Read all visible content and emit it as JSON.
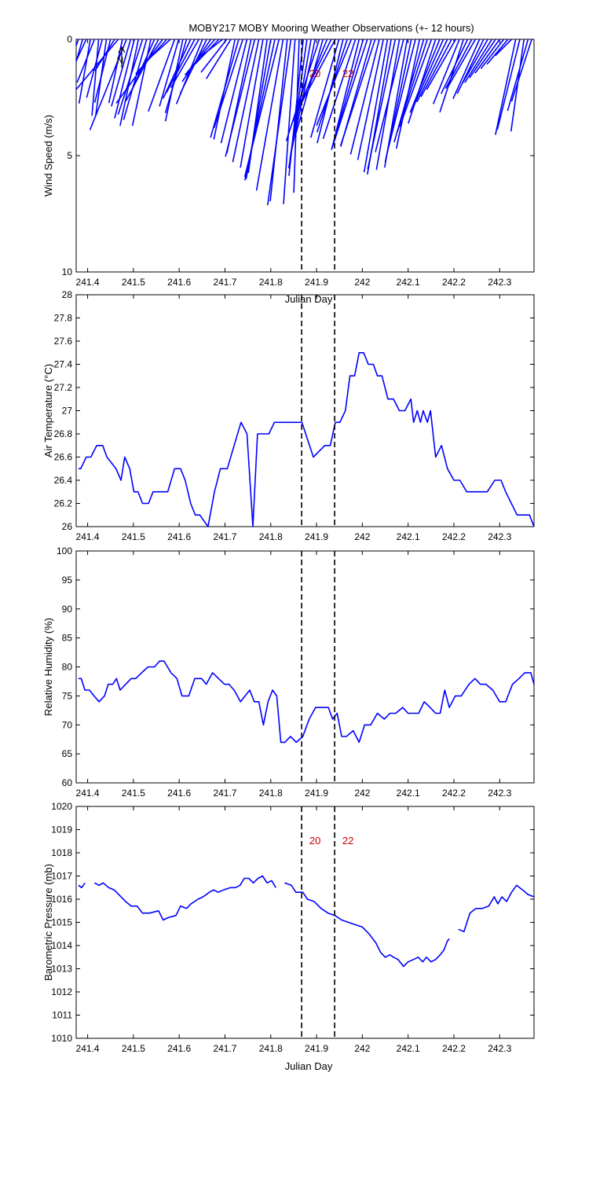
{
  "title": "MOBY217 MOBY Mooring Weather Observations (+- 12 hours)",
  "xlabel": "Julian Day",
  "xlim": [
    241.375,
    242.375
  ],
  "x_ticks": [
    241.4,
    241.5,
    241.6,
    241.7,
    241.8,
    241.9,
    242,
    242.1,
    242.2,
    242.3
  ],
  "x_tick_labels": [
    "241.4",
    "241.5",
    "241.6",
    "241.7",
    "241.8",
    "241.9",
    "242",
    "242.1",
    "242.2",
    "242.3"
  ],
  "x_label_under_top_panel": "Julian Day",
  "markers": [
    {
      "x": 241.8675,
      "label": "20"
    },
    {
      "x": 241.9395,
      "label": "22"
    }
  ],
  "colors": {
    "series": "#0000ff",
    "marker_line": "#000000",
    "marker_label": "#cc0000",
    "axes": "#000000"
  },
  "chart_data": [
    {
      "type": "vector-stick",
      "panel": "wind",
      "ylabel": "Wind Speed (m/s)",
      "ylim": [
        0,
        10
      ],
      "y_inverted": true,
      "y_ticks": [
        0,
        5,
        10
      ],
      "y_tick_labels": [
        "0",
        "5",
        "10"
      ],
      "show_marker_labels": true,
      "north_arrow_label": "N",
      "series": [
        {
          "x": [
            241.38,
            241.389,
            241.397,
            241.406,
            241.415,
            241.424,
            241.432,
            241.441,
            241.45,
            241.459,
            241.467,
            241.476,
            241.485,
            241.494,
            241.502,
            241.511,
            241.52,
            241.529,
            241.538,
            241.546,
            241.555,
            241.564,
            241.573,
            241.581,
            241.59,
            241.599,
            241.608,
            241.616,
            241.625,
            241.634,
            241.643,
            241.651,
            241.66,
            241.669,
            241.678,
            241.687,
            241.695,
            241.704,
            241.713,
            241.722,
            241.73,
            241.739,
            241.748,
            241.757,
            241.765,
            241.774,
            241.783,
            241.792,
            241.8,
            241.809,
            241.818,
            241.827,
            241.836,
            241.844,
            241.853,
            241.862,
            241.871,
            241.879,
            241.888,
            241.897,
            241.906,
            241.914,
            241.923,
            241.932,
            241.941,
            241.949,
            241.958,
            241.967,
            241.976,
            241.985,
            241.993,
            242.002,
            242.011,
            242.02,
            242.028,
            242.037,
            242.046,
            242.055,
            242.063,
            242.072,
            242.081,
            242.09,
            242.098,
            242.107,
            242.116,
            242.125,
            242.134,
            242.142,
            242.151,
            242.16,
            242.169,
            242.177,
            242.186,
            242.195,
            242.204,
            242.212,
            242.221,
            242.23,
            242.239,
            242.247,
            242.256,
            242.265,
            242.274,
            242.283,
            242.291,
            242.3,
            242.309,
            242.318,
            242.326,
            242.335,
            242.344,
            242.353,
            242.362,
            242.37
          ],
          "speed": [
            2.0,
            2.3,
            1.8,
            2.8,
            2.0,
            3.3,
            2.6,
            3.3,
            2.8,
            1.6,
            3.2,
            2.8,
            4.2,
            3.0,
            3.5,
            3.8,
            3.4,
            3.6,
            3.8,
            2.5,
            3.0,
            3.4,
            2.0,
            1.5,
            3.3,
            3.0,
            3.6,
            3.3,
            2.8,
            2.6,
            2.4,
            3.0,
            2.6,
            2.2,
            2.0,
            1.5,
            1.2,
            1.8,
            2.0,
            4.4,
            4.4,
            4.0,
            4.6,
            5.0,
            5.2,
            5.4,
            5.6,
            5.8,
            6.1,
            6.2,
            6.1,
            6.6,
            7.0,
            7.2,
            7.1,
            6.6,
            5.9,
            5.6,
            5.2,
            5.0,
            4.6,
            4.2,
            3.8,
            3.4,
            3.6,
            4.4,
            4.6,
            4.2,
            4.0,
            4.5,
            4.9,
            4.9,
            4.9,
            4.8,
            4.8,
            5.1,
            5.3,
            5.8,
            5.9,
            5.7,
            5.7,
            5.0,
            5.6,
            5.4,
            5.1,
            4.8,
            4.6,
            4.2,
            4.0,
            3.8,
            3.4,
            3.2,
            3.0,
            2.8,
            2.5,
            3.0,
            3.3,
            2.6,
            2.4,
            2.4,
            2.8,
            2.6,
            2.2,
            2.2,
            2.0,
            1.8,
            1.6,
            1.4,
            1.0,
            4.2,
            4.0,
            4.0,
            3.2,
            2.8
          ],
          "direction_deg": [
            20,
            16,
            25,
            10,
            22,
            5,
            15,
            8,
            14,
            32,
            40,
            12,
            22,
            16,
            14,
            12,
            18,
            16,
            12,
            24,
            28,
            36,
            42,
            48,
            20,
            16,
            12,
            16,
            25,
            28,
            30,
            22,
            26,
            34,
            40,
            44,
            52,
            38,
            32,
            12,
            16,
            18,
            14,
            12,
            14,
            12,
            10,
            8,
            10,
            12,
            14,
            10,
            6,
            8,
            4,
            2,
            6,
            8,
            10,
            12,
            18,
            16,
            22,
            26,
            28,
            16,
            14,
            18,
            22,
            18,
            14,
            16,
            18,
            16,
            18,
            14,
            12,
            10,
            10,
            12,
            10,
            14,
            10,
            12,
            14,
            12,
            16,
            18,
            20,
            18,
            22,
            24,
            26,
            28,
            30,
            22,
            18,
            26,
            28,
            30,
            24,
            26,
            30,
            32,
            34,
            36,
            38,
            40,
            45,
            12,
            14,
            8,
            16,
            18
          ]
        }
      ]
    },
    {
      "type": "line",
      "panel": "air_temperature",
      "ylabel": "Air Temperature (°C)",
      "ylim": [
        26,
        28
      ],
      "y_ticks": [
        26,
        26.2,
        26.4,
        26.6,
        26.8,
        27,
        27.2,
        27.4,
        27.6,
        27.8,
        28
      ],
      "y_tick_labels": [
        "26",
        "26.2",
        "26.4",
        "26.6",
        "26.8",
        "27",
        "27.2",
        "27.4",
        "27.6",
        "27.8",
        "28"
      ],
      "series": [
        {
          "x": [
            241.38,
            241.385,
            241.397,
            241.407,
            241.42,
            241.433,
            241.442,
            241.462,
            241.473,
            241.481,
            241.492,
            241.501,
            241.51,
            241.52,
            241.533,
            241.543,
            241.561,
            241.575,
            241.59,
            241.603,
            241.613,
            241.625,
            241.635,
            241.645,
            241.663,
            241.677,
            241.69,
            241.705,
            241.72,
            241.735,
            241.748,
            241.761,
            241.771,
            241.796,
            241.808,
            241.83,
            241.843,
            241.868,
            241.893,
            241.918,
            241.93,
            241.941,
            241.951,
            241.963,
            241.973,
            241.983,
            241.993,
            242.003,
            242.013,
            242.024,
            242.033,
            242.043,
            242.056,
            242.068,
            242.081,
            242.093,
            242.106,
            242.112,
            242.12,
            242.127,
            242.133,
            242.142,
            242.149,
            242.16,
            242.173,
            242.186,
            242.2,
            242.213,
            242.228,
            242.248,
            242.273,
            242.289,
            242.303,
            242.313,
            242.338,
            242.353,
            242.365,
            242.375
          ],
          "values": [
            26.5,
            26.5,
            26.6,
            26.6,
            26.7,
            26.7,
            26.6,
            26.5,
            26.4,
            26.6,
            26.5,
            26.3,
            26.3,
            26.2,
            26.2,
            26.3,
            26.3,
            26.3,
            26.5,
            26.5,
            26.4,
            26.2,
            26.1,
            26.1,
            26.0,
            26.3,
            26.5,
            26.5,
            26.7,
            26.9,
            26.8,
            26.0,
            26.8,
            26.8,
            26.9,
            26.9,
            26.9,
            26.9,
            26.6,
            26.7,
            26.7,
            26.9,
            26.9,
            27.0,
            27.3,
            27.3,
            27.5,
            27.5,
            27.4,
            27.4,
            27.3,
            27.3,
            27.1,
            27.1,
            27.0,
            27.0,
            27.1,
            26.9,
            27.0,
            26.9,
            27.0,
            26.9,
            27.0,
            26.6,
            26.7,
            26.5,
            26.4,
            26.4,
            26.3,
            26.3,
            26.3,
            26.4,
            26.4,
            26.3,
            26.1,
            26.1,
            26.1,
            26.0
          ]
        }
      ]
    },
    {
      "type": "line",
      "panel": "relative_humidity",
      "ylabel": "Relative Humidity (%)",
      "ylim": [
        60,
        100
      ],
      "y_ticks": [
        60,
        65,
        70,
        75,
        80,
        85,
        90,
        95,
        100
      ],
      "y_tick_labels": [
        "60",
        "65",
        "70",
        "75",
        "80",
        "85",
        "90",
        "95",
        "100"
      ],
      "series": [
        {
          "x": [
            241.38,
            241.386,
            241.394,
            241.404,
            241.414,
            241.425,
            241.437,
            241.445,
            241.455,
            241.463,
            241.471,
            241.483,
            241.495,
            241.505,
            241.518,
            241.532,
            241.546,
            241.557,
            241.567,
            241.582,
            241.595,
            241.606,
            241.621,
            241.634,
            241.649,
            241.659,
            241.673,
            241.686,
            241.699,
            241.709,
            241.72,
            241.734,
            241.744,
            241.754,
            241.764,
            241.774,
            241.784,
            241.794,
            241.804,
            241.813,
            241.822,
            241.831,
            241.843,
            241.856,
            241.87,
            241.884,
            241.898,
            241.911,
            241.926,
            241.935,
            241.945,
            241.955,
            241.965,
            241.98,
            241.993,
            242.005,
            242.018,
            242.033,
            242.048,
            242.06,
            242.073,
            242.088,
            242.1,
            242.113,
            242.123,
            242.135,
            242.148,
            242.16,
            242.17,
            242.18,
            242.19,
            242.203,
            242.216,
            242.233,
            242.246,
            242.258,
            242.27,
            242.285,
            242.3,
            242.313,
            242.328,
            242.342,
            242.355,
            242.368,
            242.375
          ],
          "values": [
            78,
            78,
            76,
            76,
            75,
            74,
            75,
            77,
            77,
            78,
            76,
            77,
            78,
            78,
            79,
            80,
            80,
            81,
            81,
            79,
            78,
            75,
            75,
            78,
            78,
            77,
            79,
            78,
            77,
            77,
            76,
            74,
            75,
            76,
            74,
            74,
            70,
            74,
            76,
            75,
            67,
            67,
            68,
            67,
            68,
            71,
            73,
            73,
            73,
            71,
            72,
            68,
            68,
            69,
            67,
            70,
            70,
            72,
            71,
            72,
            72,
            73,
            72,
            72,
            72,
            74,
            73,
            72,
            72,
            76,
            73,
            75,
            75,
            77,
            78,
            77,
            77,
            76,
            74,
            74,
            77,
            78,
            79,
            79,
            77
          ]
        }
      ]
    },
    {
      "type": "line",
      "panel": "barometric_pressure",
      "ylabel": "Barometric Pressure (mb)",
      "ylim": [
        1010,
        1020
      ],
      "y_ticks": [
        1010,
        1011,
        1012,
        1013,
        1014,
        1015,
        1016,
        1017,
        1018,
        1019,
        1020
      ],
      "y_tick_labels": [
        "1010",
        "1011",
        "1012",
        "1013",
        "1014",
        "1015",
        "1016",
        "1017",
        "1018",
        "1019",
        "1020"
      ],
      "show_marker_labels": true,
      "series": [
        {
          "x": [
            241.38,
            241.387,
            241.394,
            null,
            241.415,
            241.425,
            241.434,
            241.446,
            241.458,
            241.468,
            241.483,
            241.495,
            241.508,
            241.52,
            241.535,
            241.555,
            241.565,
            241.575,
            241.593,
            241.603,
            241.616,
            241.626,
            241.641,
            241.652,
            241.666,
            241.675,
            241.685,
            241.697,
            241.712,
            241.723,
            241.733,
            241.742,
            241.752,
            241.762,
            241.772,
            241.782,
            241.792,
            241.802,
            241.811,
            null,
            241.83,
            241.845,
            241.855,
            241.87,
            241.88,
            241.895,
            241.91,
            241.925,
            241.94,
            241.955,
            241.97,
            241.985,
            242.0,
            242.015,
            242.03,
            242.04,
            242.05,
            242.06,
            242.068,
            242.078,
            242.09,
            242.1,
            242.112,
            242.122,
            242.132,
            242.14,
            242.15,
            242.16,
            242.17,
            242.178,
            242.186,
            242.19,
            null,
            242.21,
            242.222,
            242.235,
            242.248,
            242.262,
            242.276,
            242.288,
            242.296,
            242.305,
            242.315,
            242.326,
            242.337,
            242.35,
            242.362,
            242.375
          ],
          "values": [
            1016.6,
            1016.5,
            1016.7,
            null,
            1016.7,
            1016.6,
            1016.7,
            1016.5,
            1016.4,
            1016.2,
            1015.9,
            1015.7,
            1015.7,
            1015.4,
            1015.4,
            1015.5,
            1015.1,
            1015.2,
            1015.3,
            1015.7,
            1015.6,
            1015.8,
            1016.0,
            1016.1,
            1016.3,
            1016.4,
            1016.3,
            1016.4,
            1016.5,
            1016.5,
            1016.6,
            1016.9,
            1016.9,
            1016.7,
            1016.9,
            1017.0,
            1016.7,
            1016.8,
            1016.5,
            null,
            1016.7,
            1016.6,
            1016.3,
            1016.3,
            1016.0,
            1015.9,
            1015.6,
            1015.4,
            1015.3,
            1015.1,
            1015.0,
            1014.9,
            1014.8,
            1014.5,
            1014.1,
            1013.7,
            1013.5,
            1013.6,
            1013.5,
            1013.4,
            1013.1,
            1013.3,
            1013.4,
            1013.5,
            1013.3,
            1013.5,
            1013.3,
            1013.4,
            1013.6,
            1013.8,
            1014.2,
            1014.3,
            null,
            1014.7,
            1014.6,
            1015.4,
            1015.6,
            1015.6,
            1015.7,
            1016.1,
            1015.8,
            1016.1,
            1015.9,
            1016.3,
            1016.6,
            1016.4,
            1016.2,
            1016.1
          ]
        }
      ]
    }
  ]
}
